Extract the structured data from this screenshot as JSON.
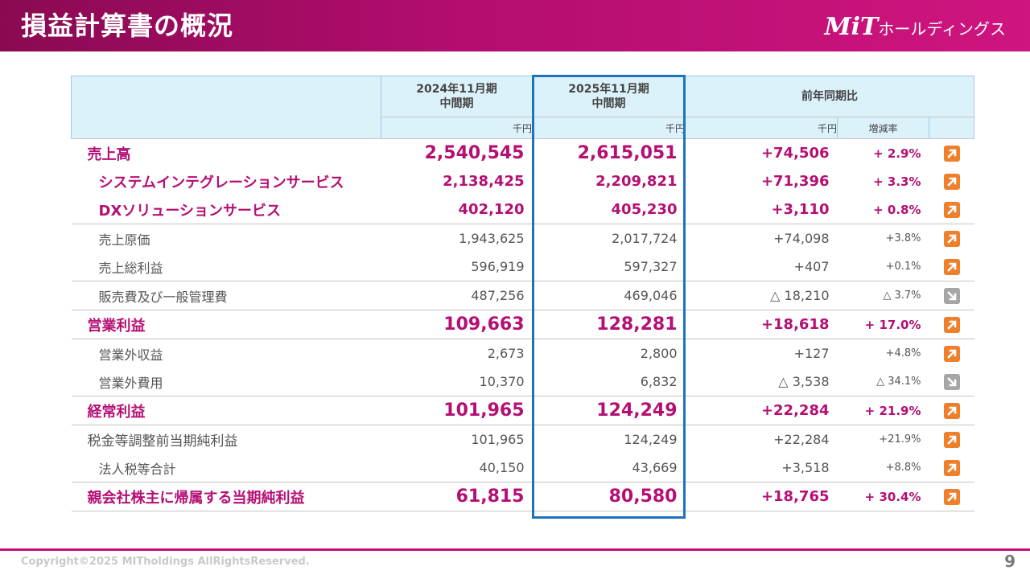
{
  "header": {
    "title": "損益計算書の概況",
    "logo_mark": "MiT",
    "logo_text": "ホールディングス"
  },
  "table": {
    "col_headers": [
      "2024年11月期",
      "中間期",
      "2025年11月期",
      "中間期",
      "前年同期比"
    ],
    "unit_labels": [
      "千円",
      "千円",
      "千円",
      "増減率"
    ],
    "rows": [
      {
        "label": "売上高",
        "prev": "2,540,545",
        "curr": "2,615,051",
        "delta": "+74,506",
        "rate": "+ 2.9%",
        "trend": "up"
      },
      {
        "label": "システムインテグレーションサービス",
        "prev": "2,138,425",
        "curr": "2,209,821",
        "delta": "+71,396",
        "rate": "+ 3.3%",
        "trend": "up"
      },
      {
        "label": "DXソリューションサービス",
        "prev": "402,120",
        "curr": "405,230",
        "delta": "+3,110",
        "rate": "+ 0.8%",
        "trend": "up"
      },
      {
        "label": "売上原価",
        "prev": "1,943,625",
        "curr": "2,017,724",
        "delta": "+74,098",
        "rate": "+3.8%",
        "trend": "up"
      },
      {
        "label": "売上総利益",
        "prev": "596,919",
        "curr": "597,327",
        "delta": "+407",
        "rate": "+0.1%",
        "trend": "up"
      },
      {
        "label": "販売費及び一般管理費",
        "prev": "487,256",
        "curr": "469,046",
        "delta": "△ 18,210",
        "rate": "△ 3.7%",
        "trend": "down"
      },
      {
        "label": "営業利益",
        "prev": "109,663",
        "curr": "128,281",
        "delta": "+18,618",
        "rate": "+ 17.0%",
        "trend": "up"
      },
      {
        "label": "営業外収益",
        "prev": "2,673",
        "curr": "2,800",
        "delta": "+127",
        "rate": "+4.8%",
        "trend": "up"
      },
      {
        "label": "営業外費用",
        "prev": "10,370",
        "curr": "6,832",
        "delta": "△ 3,538",
        "rate": "△ 34.1%",
        "trend": "down"
      },
      {
        "label": "経常利益",
        "prev": "101,965",
        "curr": "124,249",
        "delta": "+22,284",
        "rate": "+ 21.9%",
        "trend": "up"
      },
      {
        "label": "税金等調整前当期純利益",
        "prev": "101,965",
        "curr": "124,249",
        "delta": "+22,284",
        "rate": "+21.9%",
        "trend": "up"
      },
      {
        "label": "法人税等合計",
        "prev": "40,150",
        "curr": "43,669",
        "delta": "+3,518",
        "rate": "+8.8%",
        "trend": "up"
      },
      {
        "label": "親会社株主に帰属する当期純利益",
        "prev": "61,815",
        "curr": "80,580",
        "delta": "+18,765",
        "rate": "+ 30.4%",
        "trend": "up"
      }
    ]
  },
  "colors": {
    "brand": "#b50f74",
    "highlight_frame": "#1e73be",
    "header_fill": "#dcf2fb",
    "up_icon": "#ee7f2b",
    "down_icon": "#a6a6a6"
  },
  "footer": {
    "copyright": "Copyright©2025 MITholdings AllRightsReserved.",
    "page_number": "9"
  }
}
